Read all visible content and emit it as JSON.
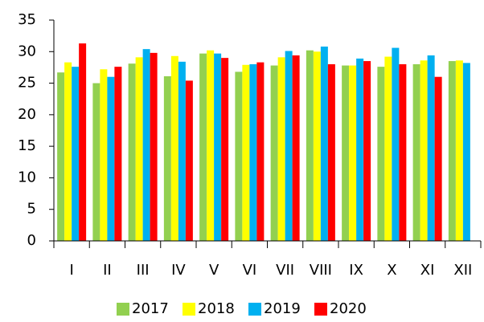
{
  "chart_data": {
    "type": "bar",
    "categories": [
      "I",
      "II",
      "III",
      "IV",
      "V",
      "VI",
      "VII",
      "VIII",
      "IX",
      "X",
      "XI",
      "XII"
    ],
    "series": [
      {
        "name": "2017",
        "color": "#92d050",
        "values": [
          26.7,
          25.0,
          28.1,
          26.1,
          29.7,
          26.8,
          27.8,
          30.2,
          27.8,
          27.6,
          28.0,
          28.5
        ]
      },
      {
        "name": "2018",
        "color": "#ffff00",
        "values": [
          28.3,
          27.2,
          29.1,
          29.3,
          30.2,
          27.9,
          29.1,
          30.0,
          27.8,
          29.2,
          28.6,
          28.6
        ]
      },
      {
        "name": "2019",
        "color": "#00b0f0",
        "values": [
          27.6,
          26.0,
          30.4,
          28.4,
          29.7,
          28.0,
          30.1,
          30.8,
          28.9,
          30.6,
          29.4,
          28.2
        ]
      },
      {
        "name": "2020",
        "color": "#ff0000",
        "values": [
          31.3,
          27.6,
          29.8,
          25.4,
          29.0,
          28.3,
          29.4,
          28.0,
          28.5,
          28.0,
          26.0,
          null
        ]
      }
    ],
    "ylim": [
      0,
      35
    ],
    "yticks": [
      0,
      5,
      10,
      15,
      20,
      25,
      30,
      35
    ],
    "grid": false,
    "legend": "bottom"
  }
}
